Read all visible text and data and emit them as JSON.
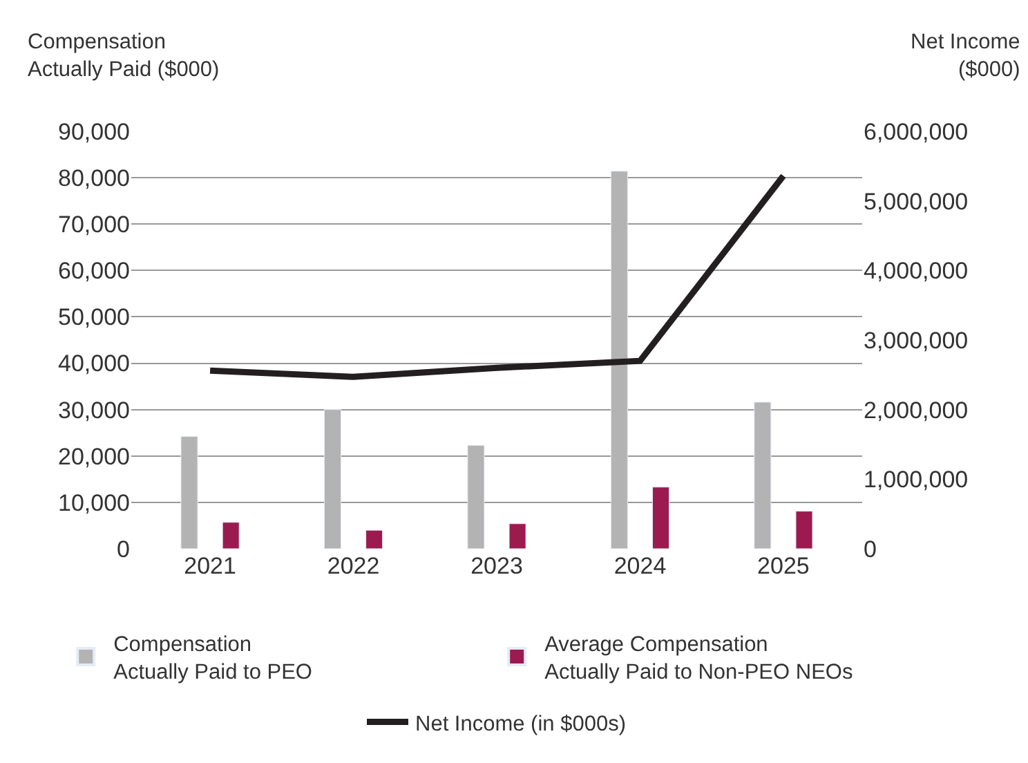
{
  "chart_data": {
    "type": "bar",
    "ylabel": "Compensation\nActually Paid ($000)",
    "y2label": "Net Income\n($000)",
    "categories": [
      "2021",
      "2022",
      "2023",
      "2024",
      "2025"
    ],
    "series": [
      {
        "name": "Compensation\nActually Paid to PEO",
        "color": "#b3b3b3",
        "values": [
          24200,
          30000,
          22300,
          81400,
          31600
        ]
      },
      {
        "name": "Average Compensation\nActually Paid to Non-PEO NEOs",
        "color": "#9b1b4f",
        "values": [
          5700,
          4000,
          5400,
          13300,
          8100
        ]
      },
      {
        "name": "Net Income (in $000s)",
        "type": "line",
        "axis": "y2",
        "color": "#231f20",
        "values": [
          2560000,
          2470000,
          2600000,
          2700000,
          5360000
        ]
      }
    ],
    "ylim": [
      0,
      90000
    ],
    "yticks": [
      {
        "value": 0,
        "label": "0"
      },
      {
        "value": 10000,
        "label": "10,000"
      },
      {
        "value": 20000,
        "label": "20,000"
      },
      {
        "value": 30000,
        "label": "30,000"
      },
      {
        "value": 40000,
        "label": "40,000"
      },
      {
        "value": 50000,
        "label": "50,000"
      },
      {
        "value": 60000,
        "label": "60,000"
      },
      {
        "value": 70000,
        "label": "70,000"
      },
      {
        "value": 80000,
        "label": "80,000"
      },
      {
        "value": 90000,
        "label": "90,000"
      }
    ],
    "y2lim": [
      0,
      6000000
    ],
    "y2ticks": [
      {
        "value": 0,
        "label": "0"
      },
      {
        "value": 1000000,
        "label": "1,000,000"
      },
      {
        "value": 2000000,
        "label": "2,000,000"
      },
      {
        "value": 3000000,
        "label": "3,000,000"
      },
      {
        "value": 4000000,
        "label": "4,000,000"
      },
      {
        "value": 5000000,
        "label": "5,000,000"
      },
      {
        "value": 6000000,
        "label": "6,000,000"
      }
    ],
    "grid": "y",
    "legend": "bottom",
    "marker": "none",
    "line_style": "solid"
  }
}
